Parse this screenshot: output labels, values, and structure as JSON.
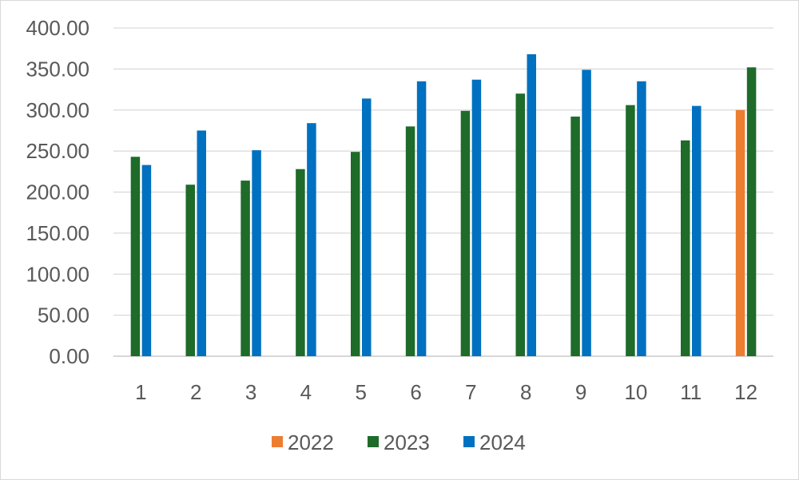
{
  "chart_data": {
    "type": "bar",
    "title": "",
    "xlabel": "",
    "ylabel": "",
    "categories": [
      "1",
      "2",
      "3",
      "4",
      "5",
      "6",
      "7",
      "8",
      "9",
      "10",
      "11",
      "12"
    ],
    "ylim": [
      0,
      400
    ],
    "yticks": [
      "0.00",
      "50.00",
      "100.00",
      "150.00",
      "200.00",
      "250.00",
      "300.00",
      "350.00",
      "400.00"
    ],
    "grid": true,
    "legend_position": "bottom",
    "series": [
      {
        "name": "2022",
        "color": "#ED7D31",
        "values": [
          null,
          null,
          null,
          null,
          null,
          null,
          null,
          null,
          null,
          null,
          null,
          300
        ]
      },
      {
        "name": "2023",
        "color": "#1E6B2A",
        "values": [
          243,
          209,
          214,
          228,
          249,
          280,
          299,
          320,
          292,
          306,
          263,
          352
        ]
      },
      {
        "name": "2024",
        "color": "#0070C0",
        "values": [
          233,
          275,
          251,
          284,
          314,
          335,
          337,
          368,
          349,
          335,
          305,
          null
        ]
      }
    ]
  }
}
